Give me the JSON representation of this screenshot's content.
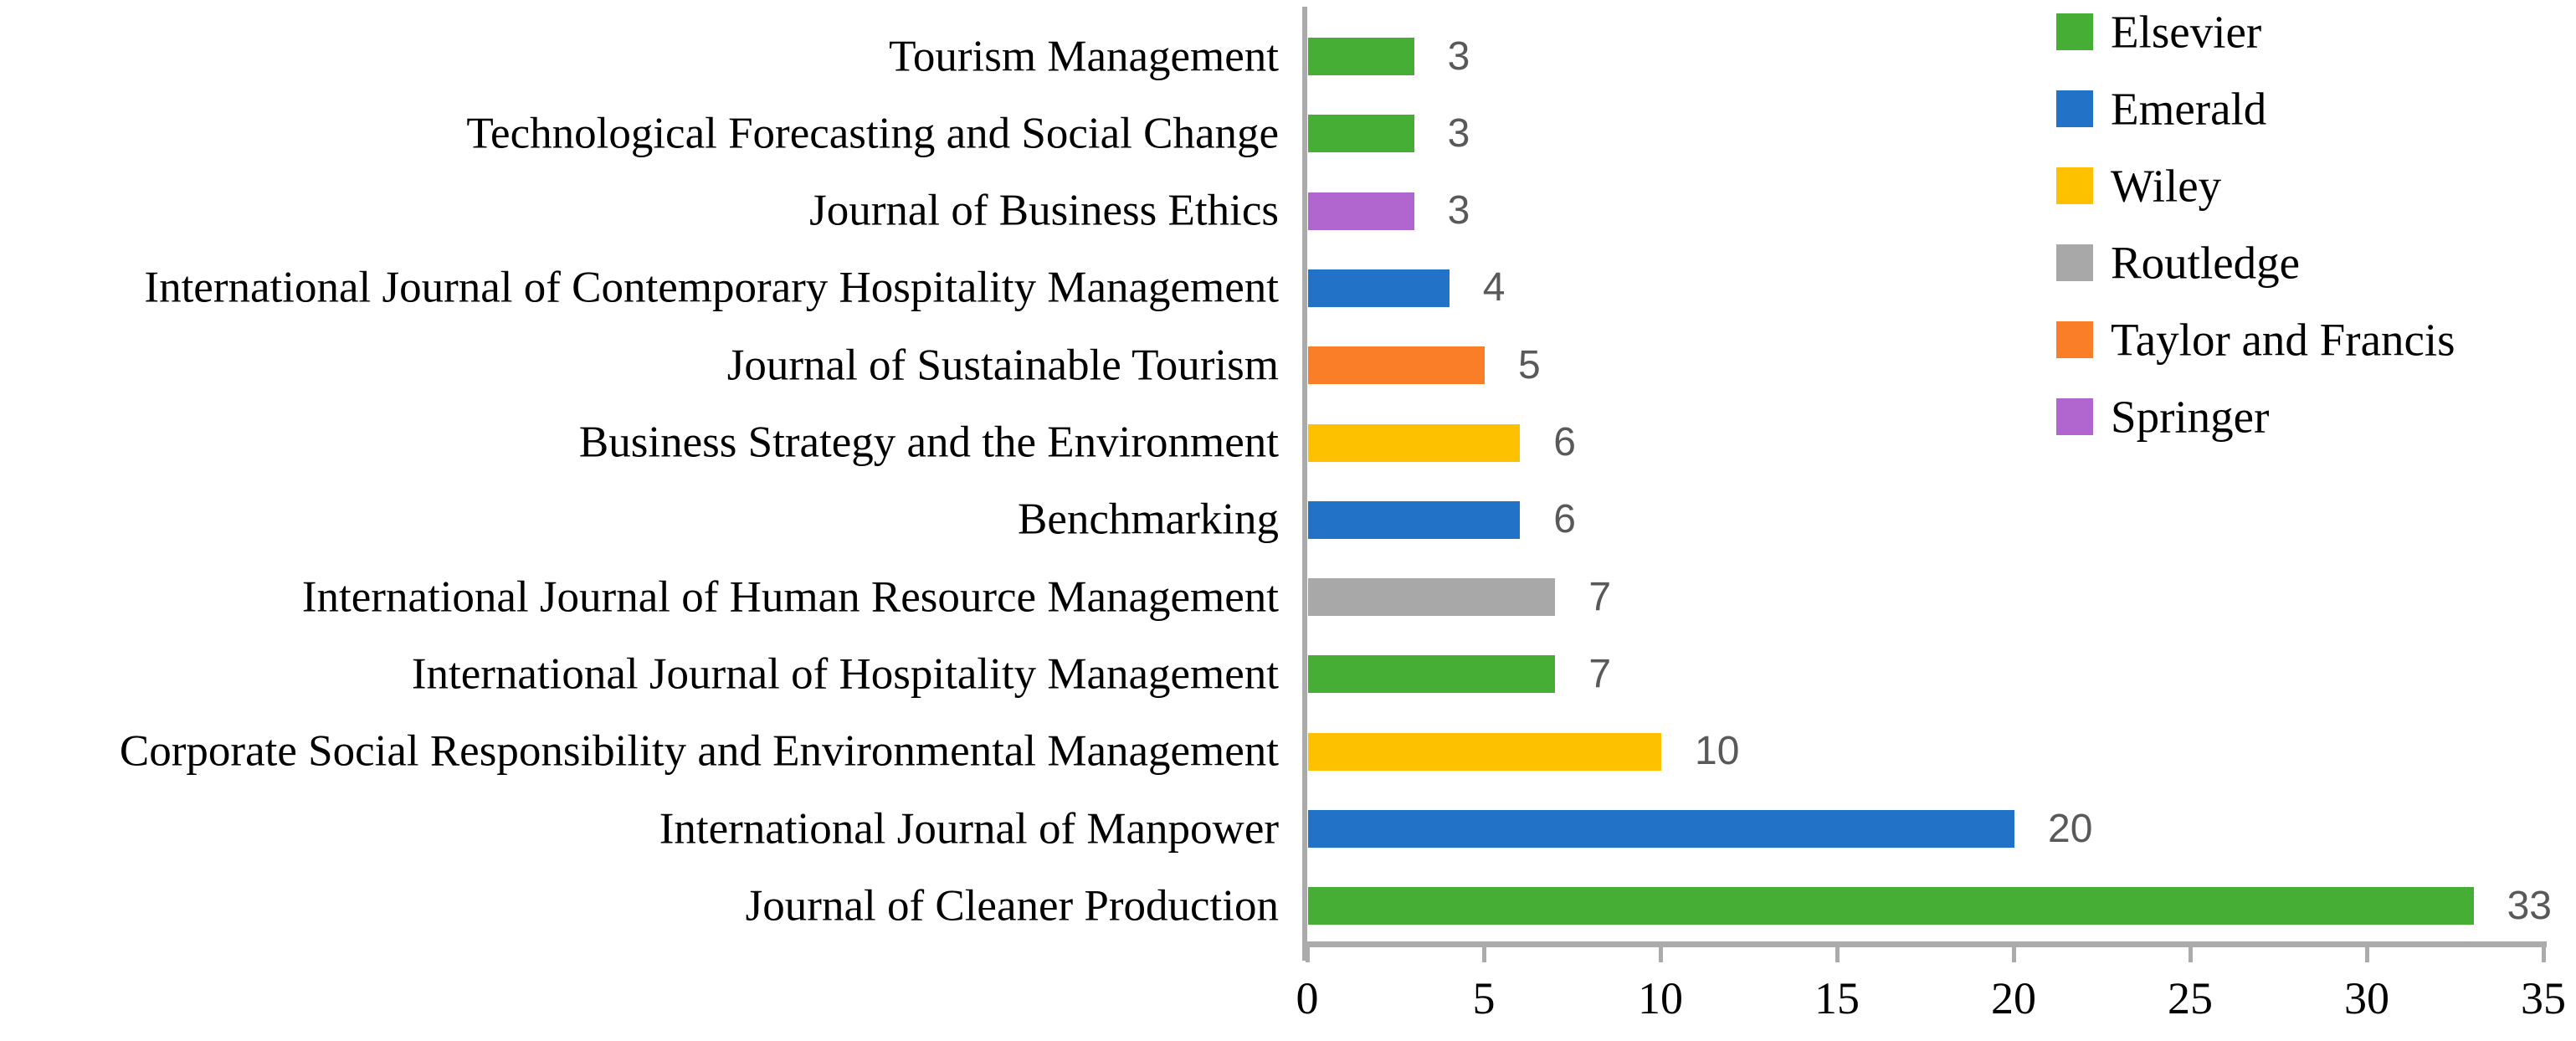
{
  "chart_data": {
    "type": "bar",
    "orientation": "horizontal",
    "title": "",
    "xlabel": "",
    "ylabel": "",
    "xlim": [
      0,
      35
    ],
    "x_ticks": [
      0,
      5,
      10,
      15,
      20,
      25,
      30,
      35
    ],
    "grid": false,
    "legend_position": "top-right",
    "legend": [
      {
        "label": "Elsevier",
        "color": "#46AD35"
      },
      {
        "label": "Emerald",
        "color": "#2273C8"
      },
      {
        "label": "Wiley",
        "color": "#FEC100"
      },
      {
        "label": "Routledge",
        "color": "#A8A8A8"
      },
      {
        "label": "Taylor and Francis",
        "color": "#FA7D28"
      },
      {
        "label": "Springer",
        "color": "#B165CF"
      }
    ],
    "rows": [
      {
        "label": "Tourism Management",
        "value": 3,
        "publisher": "Elsevier"
      },
      {
        "label": "Technological Forecasting and Social Change",
        "value": 3,
        "publisher": "Elsevier"
      },
      {
        "label": "Journal of Business Ethics",
        "value": 3,
        "publisher": "Springer"
      },
      {
        "label": "International Journal of Contemporary Hospitality Management",
        "value": 4,
        "publisher": "Emerald"
      },
      {
        "label": "Journal of Sustainable Tourism",
        "value": 5,
        "publisher": "Taylor and Francis"
      },
      {
        "label": "Business Strategy and the Environment",
        "value": 6,
        "publisher": "Wiley"
      },
      {
        "label": "Benchmarking",
        "value": 6,
        "publisher": "Emerald"
      },
      {
        "label": "International Journal of Human Resource Management",
        "value": 7,
        "publisher": "Routledge"
      },
      {
        "label": "International Journal of Hospitality Management",
        "value": 7,
        "publisher": "Elsevier"
      },
      {
        "label": "Corporate Social Responsibility and Environmental Management",
        "value": 10,
        "publisher": "Wiley"
      },
      {
        "label": "International Journal of Manpower",
        "value": 20,
        "publisher": "Emerald"
      },
      {
        "label": "Journal of Cleaner Production",
        "value": 33,
        "publisher": "Elsevier"
      }
    ],
    "colors": {
      "axis_line": "#ABABAB",
      "tick_mark": "#ABABAB",
      "data_label": "#595959",
      "text": "#000000",
      "background": "#FFFFFF"
    }
  }
}
